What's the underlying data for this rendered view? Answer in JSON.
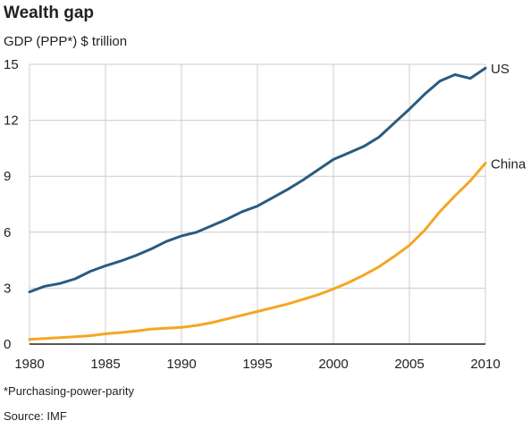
{
  "title": "Wealth gap",
  "subtitle": "GDP (PPP*) $ trillion",
  "footnote": "*Purchasing-power-parity",
  "source": "Source: IMF",
  "colors": {
    "us": "#2a5b7f",
    "china": "#f5a623",
    "grid": "#cccccc",
    "axis": "#222222"
  },
  "chart_data": {
    "type": "line",
    "title": "Wealth gap",
    "subtitle": "GDP (PPP*) $ trillion",
    "xlabel": "",
    "ylabel": "",
    "xlim": [
      1980,
      2010
    ],
    "ylim": [
      0,
      15
    ],
    "xticks": [
      1980,
      1985,
      1990,
      1995,
      2000,
      2005,
      2010
    ],
    "yticks": [
      0,
      3,
      6,
      9,
      12,
      15
    ],
    "grid": true,
    "x": [
      1980,
      1981,
      1982,
      1983,
      1984,
      1985,
      1986,
      1987,
      1988,
      1989,
      1990,
      1991,
      1992,
      1993,
      1994,
      1995,
      1996,
      1997,
      1998,
      1999,
      2000,
      2001,
      2002,
      2003,
      2004,
      2005,
      2006,
      2007,
      2008,
      2009,
      2010
    ],
    "series": [
      {
        "name": "US",
        "color": "#2a5b7f",
        "values": [
          2.8,
          3.1,
          3.25,
          3.5,
          3.9,
          4.2,
          4.45,
          4.75,
          5.1,
          5.5,
          5.8,
          6.0,
          6.35,
          6.7,
          7.1,
          7.4,
          7.85,
          8.3,
          8.8,
          9.35,
          9.9,
          10.25,
          10.6,
          11.1,
          11.85,
          12.6,
          13.4,
          14.1,
          14.45,
          14.25,
          14.8
        ]
      },
      {
        "name": "China",
        "color": "#f5a623",
        "values": [
          0.25,
          0.3,
          0.35,
          0.4,
          0.45,
          0.55,
          0.62,
          0.7,
          0.8,
          0.85,
          0.9,
          1.0,
          1.15,
          1.35,
          1.55,
          1.75,
          1.95,
          2.15,
          2.4,
          2.65,
          2.95,
          3.3,
          3.7,
          4.15,
          4.7,
          5.3,
          6.1,
          7.1,
          7.95,
          8.75,
          9.7
        ]
      }
    ]
  }
}
